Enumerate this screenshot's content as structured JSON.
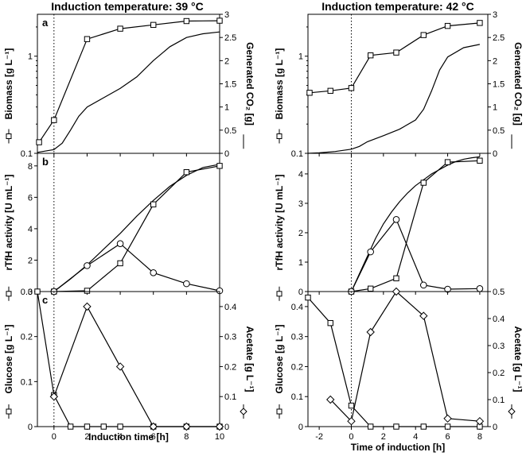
{
  "chart_data": [
    {
      "type": "line",
      "name": "left",
      "title": "Induction temperature: 39 °C",
      "xlabel": "Induction time [h]",
      "xlim": [
        -1,
        10
      ],
      "xticks": [
        0,
        2,
        4,
        6,
        8,
        10
      ],
      "panels": [
        {
          "label": "a",
          "ylabel_left": "Biomass [g L⁻¹]",
          "ylabel_right": "Generated CO₂ [g]",
          "yscale": "log",
          "ylim": [
            0.1,
            2.7
          ],
          "yticks": [
            0.1,
            1
          ],
          "y2lim": [
            0,
            3
          ],
          "y2ticks": [
            0,
            0.5,
            1,
            1.5,
            2,
            2.5,
            3
          ],
          "series": [
            {
              "name": "Biomass",
              "axis": "left",
              "marker": "square",
              "x": [
                -0.9,
                0,
                2,
                4,
                6,
                8,
                10
              ],
              "y": [
                0.13,
                0.22,
                1.5,
                1.92,
                2.1,
                2.3,
                2.32
              ]
            },
            {
              "name": "Generated CO2",
              "axis": "right",
              "marker": "none",
              "x": [
                -1,
                0,
                0.5,
                1,
                1.5,
                2,
                3,
                4,
                5,
                6,
                6.5,
                7,
                8,
                9,
                10
              ],
              "y": [
                0.02,
                0.08,
                0.22,
                0.5,
                0.8,
                1.0,
                1.2,
                1.4,
                1.65,
                2.0,
                2.15,
                2.3,
                2.5,
                2.58,
                2.62
              ]
            }
          ]
        },
        {
          "label": "b",
          "ylabel_left": "rTfH activity [U mL⁻¹]",
          "ylim": [
            0,
            8.8
          ],
          "yticks": [
            0,
            2,
            4,
            6,
            8
          ],
          "series": [
            {
              "name": "rTfH total",
              "marker": "none",
              "x": [
                0,
                1,
                2,
                3,
                4,
                5,
                6,
                7,
                8,
                9,
                10
              ],
              "y": [
                0,
                0.8,
                1.7,
                2.7,
                3.7,
                4.8,
                5.8,
                6.7,
                7.4,
                7.9,
                8.1
              ]
            },
            {
              "name": "rTfH square",
              "marker": "square",
              "x": [
                0,
                2,
                4,
                6,
                8,
                10
              ],
              "y": [
                0,
                0.05,
                1.8,
                5.55,
                7.6,
                8.0
              ]
            },
            {
              "name": "rTfH circle",
              "marker": "circle",
              "x": [
                0,
                2,
                4,
                6,
                8,
                10
              ],
              "y": [
                0,
                1.65,
                3.05,
                1.2,
                0.5,
                0.05
              ]
            }
          ]
        },
        {
          "label": "c",
          "ylabel_left": "Glucose [g L⁻¹]",
          "ylabel_right": "Acetate [g L⁻¹]",
          "ylim": [
            0,
            0.3
          ],
          "yticks": [
            0,
            0.1,
            0.2,
            0.3
          ],
          "y2lim": [
            0,
            0.45
          ],
          "y2ticks": [
            0,
            0.1,
            0.2,
            0.3,
            0.4
          ],
          "series": [
            {
              "name": "Glucose",
              "axis": "left",
              "marker": "square",
              "x": [
                -1,
                0,
                1,
                2,
                3,
                4,
                6,
                8,
                10
              ],
              "y": [
                0.3,
                0.07,
                0,
                0,
                0,
                0,
                0,
                0,
                0
              ]
            },
            {
              "name": "Acetate",
              "axis": "right",
              "marker": "diamond",
              "x": [
                0,
                2,
                4,
                6,
                8,
                10
              ],
              "y": [
                0.1,
                0.4,
                0.2,
                0,
                0,
                0
              ]
            }
          ]
        }
      ]
    },
    {
      "type": "line",
      "name": "right",
      "title": "Induction temperature: 42 °C",
      "xlabel": "Time of induction [h]",
      "xlim": [
        -2.7,
        8.5
      ],
      "xticks": [
        -2,
        0,
        2,
        4,
        6,
        8
      ],
      "panels": [
        {
          "label": "",
          "ylabel_left": "Biomass [g L⁻¹]",
          "ylabel_right": "Generated CO₂ [g]",
          "yscale": "log",
          "ylim": [
            0.1,
            2.7
          ],
          "yticks": [
            0.1,
            1
          ],
          "y2lim": [
            0,
            3
          ],
          "y2ticks": [
            0,
            0.5,
            1,
            1.5,
            2,
            2.5,
            3
          ],
          "series": [
            {
              "name": "Biomass",
              "axis": "left",
              "marker": "square",
              "x": [
                -2.6,
                -1.3,
                0,
                1.2,
                2.8,
                4.5,
                6,
                8
              ],
              "y": [
                0.42,
                0.44,
                0.47,
                1.02,
                1.09,
                1.65,
                2.05,
                2.2
              ]
            },
            {
              "name": "Generated CO2",
              "axis": "right",
              "marker": "none",
              "x": [
                -2.7,
                -2,
                -1,
                0,
                0.5,
                1,
                2,
                3,
                4,
                4.5,
                5,
                5.5,
                6,
                7,
                8
              ],
              "y": [
                0,
                0.01,
                0.04,
                0.09,
                0.15,
                0.25,
                0.38,
                0.52,
                0.72,
                0.95,
                1.35,
                1.8,
                2.08,
                2.28,
                2.35
              ]
            }
          ]
        },
        {
          "label": "",
          "ylabel_left": "rTfH activity [U mL⁻¹]",
          "ylim": [
            0,
            4.7
          ],
          "yticks": [
            0,
            1,
            2,
            3,
            4
          ],
          "series": [
            {
              "name": "rTfH total",
              "marker": "none",
              "x": [
                0,
                0.5,
                1,
                1.5,
                2,
                2.5,
                3,
                3.5,
                4,
                4.5,
                5,
                5.5,
                6,
                6.5,
                7,
                7.5,
                8
              ],
              "y": [
                0,
                0.6,
                1.2,
                1.8,
                2.3,
                2.7,
                3.05,
                3.35,
                3.6,
                3.8,
                4.0,
                4.15,
                4.3,
                4.42,
                4.5,
                4.55,
                4.58
              ]
            },
            {
              "name": "rTfH square",
              "marker": "square",
              "x": [
                0,
                1.2,
                2.8,
                4.5,
                6,
                8
              ],
              "y": [
                0,
                0.1,
                0.45,
                3.7,
                4.4,
                4.45
              ]
            },
            {
              "name": "rTfH circle",
              "marker": "circle",
              "x": [
                0,
                1.2,
                2.8,
                4.5,
                6,
                8
              ],
              "y": [
                0,
                1.35,
                2.45,
                0.22,
                0.08,
                0.1
              ]
            }
          ]
        },
        {
          "label": "",
          "ylabel_left": "Glucose [g L⁻¹]",
          "ylabel_right": "Acetate [g L⁻¹]",
          "ylim": [
            0,
            0.45
          ],
          "yticks": [
            0,
            0.1,
            0.2,
            0.3,
            0.4
          ],
          "y2lim": [
            0,
            0.5
          ],
          "y2ticks": [
            0,
            0.1,
            0.2,
            0.3,
            0.4,
            0.5
          ],
          "series": [
            {
              "name": "Glucose",
              "axis": "left",
              "marker": "square",
              "x": [
                -2.7,
                -1.3,
                0,
                1.2,
                2.8,
                4.5,
                6,
                8
              ],
              "y": [
                0.43,
                0.345,
                0.07,
                0,
                0,
                0,
                0,
                0
              ]
            },
            {
              "name": "Acetate",
              "axis": "right",
              "marker": "diamond",
              "x": [
                -1.3,
                0,
                1.2,
                2.8,
                4.5,
                6,
                8
              ],
              "y": [
                0.1,
                0.02,
                0.35,
                0.5,
                0.41,
                0.03,
                0.02
              ]
            }
          ]
        }
      ]
    }
  ]
}
